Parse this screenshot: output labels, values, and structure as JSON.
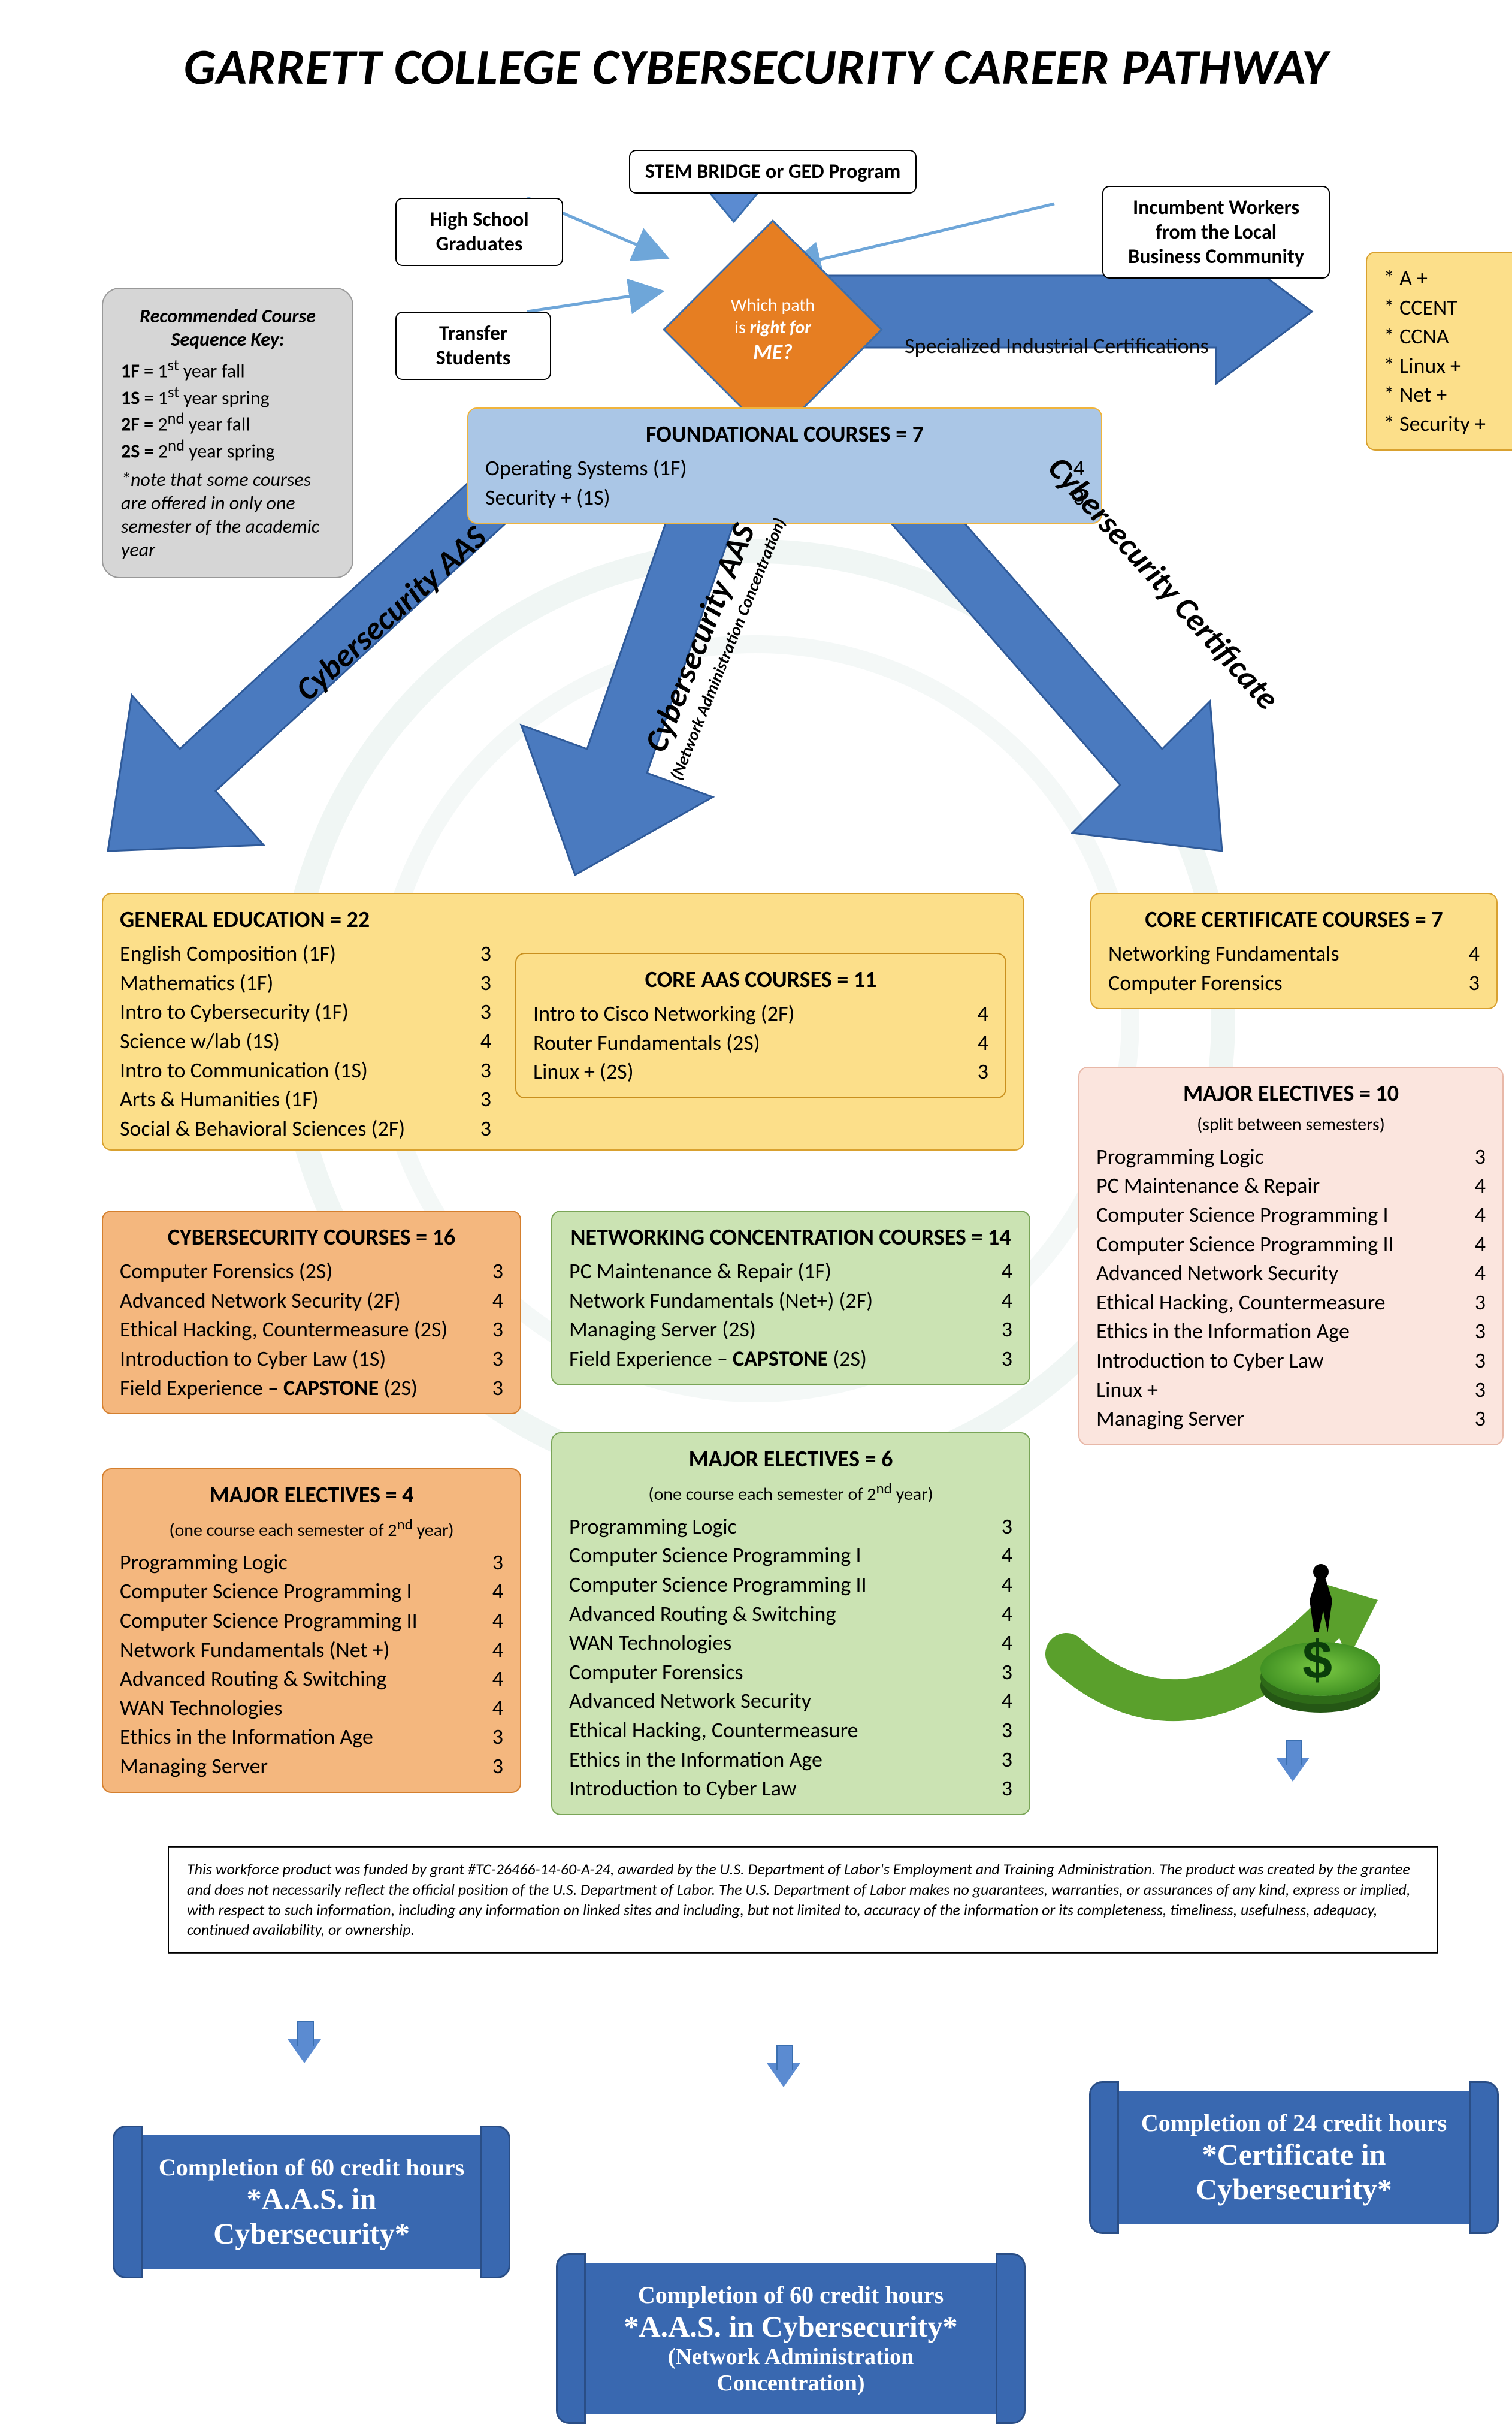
{
  "title": "GARRETT COLLEGE CYBERSECURITY CAREER PATHWAY",
  "colors": {
    "blue_fill": "#aac6e6",
    "yellow_fill": "#fcdf8a",
    "orange_fill": "#f4b77e",
    "green_fill": "#cbe3b3",
    "pink_fill": "#fbe5de",
    "grey_fill": "#d6d6d6",
    "deep_blue": "#3968b0",
    "arrow_blue": "#4a7abf",
    "diamond": "#e67e22",
    "thin_arrow": "#6ea6d9"
  },
  "entry_boxes": {
    "stem": "STEM BRIDGE or GED Program",
    "hs": "High School\nGraduates",
    "transfer": "Transfer\nStudents",
    "incumbent": "Incumbent Workers\nfrom the Local\nBusiness Community"
  },
  "diamond": {
    "l1": "Which path",
    "l2": "is right for",
    "l3": "ME?"
  },
  "spec_cert_label": "Specialized Industrial Certifications",
  "cert_list": {
    "title": "",
    "items": [
      "A +",
      "CCENT",
      "CCNA",
      "Linux +",
      "Net +",
      "Security +"
    ]
  },
  "key_box": {
    "title": "Recommended Course Sequence Key:",
    "rows": [
      [
        "1F =",
        "1",
        "st",
        " year fall"
      ],
      [
        "1S =",
        "1",
        "st",
        " year spring"
      ],
      [
        "2F =",
        "2",
        "nd",
        "  year fall"
      ],
      [
        "2S =",
        "2",
        "nd",
        "  year spring"
      ]
    ],
    "note": "*note that some courses are offered in only one semester of the academic year"
  },
  "foundational": {
    "title": "FOUNDATIONAL COURSES = 7",
    "rows": [
      [
        "Operating Systems (1F)",
        "4"
      ],
      [
        "Security +  (1S)",
        "3"
      ]
    ]
  },
  "path_labels": {
    "aas": "Cybersecurity AAS",
    "aas_net": "Cybersecurity AAS",
    "aas_net_sub": "(Network Administration Concentration)",
    "cert": "Cybersecurity Certificate"
  },
  "gen_ed": {
    "title": "GENERAL EDUCATION = 22",
    "rows": [
      [
        "English Composition (1F)",
        "3"
      ],
      [
        "Mathematics (1F)",
        "3"
      ],
      [
        "Intro to Cybersecurity (1F)",
        "3"
      ],
      [
        "Science w/lab (1S)",
        "4"
      ],
      [
        "Intro to Communication (1S)",
        "3"
      ],
      [
        "Arts & Humanities (1F)",
        "3"
      ],
      [
        "Social & Behavioral Sciences (2F)",
        "3"
      ]
    ]
  },
  "core_aas": {
    "title": "CORE AAS COURSES = 11",
    "rows": [
      [
        "Intro to Cisco Networking (2F)",
        "4"
      ],
      [
        "Router Fundamentals (2S)",
        "4"
      ],
      [
        "Linux + (2S)",
        "3"
      ]
    ]
  },
  "core_cert": {
    "title": "CORE CERTIFICATE COURSES = 7",
    "rows": [
      [
        "Networking Fundamentals",
        "4"
      ],
      [
        "Computer Forensics",
        "3"
      ]
    ]
  },
  "cyber_courses": {
    "title": "CYBERSECURITY COURSES = 16",
    "rows": [
      [
        "Computer Forensics (2S)",
        "3"
      ],
      [
        "Advanced Network Security (2F)",
        "4"
      ],
      [
        "Ethical Hacking, Countermeasure (2S)",
        "3"
      ],
      [
        "Introduction to Cyber Law (1S)",
        "3"
      ],
      [
        "Field Experience – <b>CAPSTONE</b> (2S)",
        "3"
      ]
    ]
  },
  "net_conc": {
    "title": "NETWORKING CONCENTRATION COURSES = 14",
    "rows": [
      [
        "PC Maintenance & Repair (1F)",
        "4"
      ],
      [
        "Network Fundamentals (Net+) (2F)",
        "4"
      ],
      [
        "Managing Server (2S)",
        "3"
      ],
      [
        "Field Experience – <b>CAPSTONE</b> (2S)",
        "3"
      ]
    ]
  },
  "major_el_aas": {
    "title": "MAJOR ELECTIVES = 4",
    "sub": "(one course each semester of 2<sup>nd</sup> year)",
    "rows": [
      [
        "Programming Logic",
        "3"
      ],
      [
        "Computer Science Programming I",
        "4"
      ],
      [
        "Computer Science Programming II",
        "4"
      ],
      [
        "Network Fundamentals (Net +)",
        "4"
      ],
      [
        "Advanced Routing & Switching",
        "4"
      ],
      [
        "WAN Technologies",
        "4"
      ],
      [
        "Ethics in the Information Age",
        "3"
      ],
      [
        "Managing Server",
        "3"
      ]
    ]
  },
  "major_el_net": {
    "title": "MAJOR ELECTIVES = 6",
    "sub": "(one course each semester of 2<sup>nd</sup> year)",
    "rows": [
      [
        "Programming Logic",
        "3"
      ],
      [
        "Computer Science Programming I",
        "4"
      ],
      [
        "Computer Science Programming II",
        "4"
      ],
      [
        "Advanced Routing & Switching",
        "4"
      ],
      [
        "WAN Technologies",
        "4"
      ],
      [
        "Computer Forensics",
        "3"
      ],
      [
        "Advanced Network Security",
        "4"
      ],
      [
        "Ethical Hacking, Countermeasure",
        "3"
      ],
      [
        "Ethics in the Information Age",
        "3"
      ],
      [
        "Introduction to Cyber Law",
        "3"
      ]
    ]
  },
  "major_el_cert": {
    "title": "MAJOR ELECTIVES = 10",
    "sub": "(split between semesters)",
    "rows": [
      [
        "Programming Logic",
        "3"
      ],
      [
        "PC Maintenance & Repair",
        "4"
      ],
      [
        "Computer Science Programming I",
        "4"
      ],
      [
        "Computer Science Programming II",
        "4"
      ],
      [
        "Advanced Network Security",
        "4"
      ],
      [
        "Ethical Hacking, Countermeasure",
        "3"
      ],
      [
        "Ethics in the Information Age",
        "3"
      ],
      [
        "Introduction to Cyber Law",
        "3"
      ],
      [
        "Linux +",
        "3"
      ],
      [
        "Managing Server",
        "3"
      ]
    ]
  },
  "completions": {
    "aas": {
      "t1": "Completion of 60 credit hours",
      "t2": "*A.A.S. in Cybersecurity*"
    },
    "net": {
      "t1": "Completion of 60 credit hours",
      "t2": "*A.A.S. in Cybersecurity*",
      "t3": "(Network Administration Concentration)"
    },
    "cert": {
      "t1": "Completion of 24 credit hours",
      "t2": "*Certificate in Cybersecurity*"
    }
  },
  "footer": "This workforce product was funded by grant #TC-26466-14-60-A-24, awarded by the U.S. Department of Labor's Employment and Training  Administration. The product was created by the grantee and does not necessarily  reflect the official position of the U.S. Department of Labor. The U.S. Department of Labor makes no guarantees, warranties, or assurances of any kind, express or implied, with respect to such information, including any information on linked sites and including, but not limited to, accuracy of the information or its completeness, timeliness, usefulness, adequacy, continued availability, or ownership."
}
